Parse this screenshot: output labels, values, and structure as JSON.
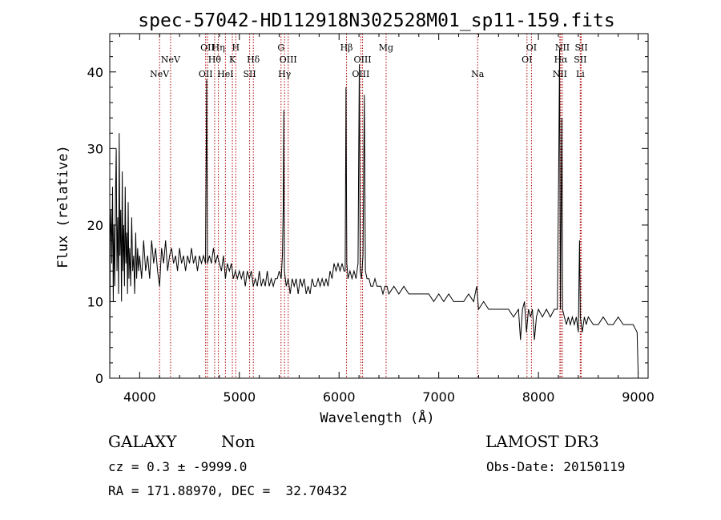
{
  "chart_data": {
    "type": "line",
    "title": "spec-57042-HD112918N302528M01_sp11-159.fits",
    "xlabel": "Wavelength (Å)",
    "ylabel": "Flux (relative)",
    "xlim": [
      3700,
      9100
    ],
    "ylim": [
      0,
      45
    ],
    "x_ticks": [
      4000,
      5000,
      6000,
      7000,
      8000,
      9000
    ],
    "y_ticks": [
      0,
      10,
      20,
      30,
      40
    ],
    "series": [
      {
        "name": "flux",
        "points": [
          [
            3700,
            0.5
          ],
          [
            3705,
            18
          ],
          [
            3712,
            22
          ],
          [
            3720,
            15
          ],
          [
            3728,
            25
          ],
          [
            3735,
            10
          ],
          [
            3742,
            20
          ],
          [
            3750,
            12
          ],
          [
            3758,
            24
          ],
          [
            3765,
            30
          ],
          [
            3772,
            14
          ],
          [
            3780,
            21
          ],
          [
            3788,
            11
          ],
          [
            3795,
            32
          ],
          [
            3802,
            16
          ],
          [
            3810,
            22
          ],
          [
            3818,
            10
          ],
          [
            3825,
            27
          ],
          [
            3832,
            14
          ],
          [
            3840,
            20
          ],
          [
            3848,
            12
          ],
          [
            3855,
            25
          ],
          [
            3862,
            15
          ],
          [
            3870,
            19
          ],
          [
            3878,
            11
          ],
          [
            3885,
            23
          ],
          [
            3892,
            13
          ],
          [
            3900,
            17
          ],
          [
            3910,
            12
          ],
          [
            3920,
            21
          ],
          [
            3930,
            14
          ],
          [
            3940,
            16
          ],
          [
            3950,
            11
          ],
          [
            3960,
            19
          ],
          [
            3970,
            13
          ],
          [
            3980,
            17
          ],
          [
            3990,
            14
          ],
          [
            4000,
            16
          ],
          [
            4020,
            13
          ],
          [
            4040,
            18
          ],
          [
            4060,
            14
          ],
          [
            4080,
            16
          ],
          [
            4100,
            13
          ],
          [
            4120,
            18
          ],
          [
            4140,
            15
          ],
          [
            4160,
            17
          ],
          [
            4180,
            14
          ],
          [
            4200,
            12
          ],
          [
            4220,
            17
          ],
          [
            4240,
            15
          ],
          [
            4260,
            18
          ],
          [
            4280,
            14
          ],
          [
            4300,
            16
          ],
          [
            4320,
            17
          ],
          [
            4340,
            15
          ],
          [
            4360,
            16
          ],
          [
            4380,
            14
          ],
          [
            4400,
            17
          ],
          [
            4420,
            15
          ],
          [
            4440,
            16
          ],
          [
            4460,
            14
          ],
          [
            4480,
            16
          ],
          [
            4500,
            15
          ],
          [
            4520,
            17
          ],
          [
            4540,
            15
          ],
          [
            4560,
            16
          ],
          [
            4580,
            14
          ],
          [
            4600,
            16
          ],
          [
            4620,
            15
          ],
          [
            4640,
            16
          ],
          [
            4660,
            15
          ],
          [
            4672,
            39
          ],
          [
            4680,
            15
          ],
          [
            4700,
            16
          ],
          [
            4720,
            15
          ],
          [
            4740,
            17
          ],
          [
            4760,
            15
          ],
          [
            4780,
            16
          ],
          [
            4800,
            15
          ],
          [
            4820,
            14
          ],
          [
            4840,
            16
          ],
          [
            4860,
            13
          ],
          [
            4880,
            15
          ],
          [
            4900,
            14
          ],
          [
            4920,
            15
          ],
          [
            4940,
            13
          ],
          [
            4960,
            14
          ],
          [
            4980,
            13
          ],
          [
            5000,
            14
          ],
          [
            5020,
            13
          ],
          [
            5040,
            14
          ],
          [
            5060,
            12
          ],
          [
            5080,
            14
          ],
          [
            5100,
            13
          ],
          [
            5120,
            14
          ],
          [
            5140,
            12
          ],
          [
            5160,
            13
          ],
          [
            5180,
            12
          ],
          [
            5200,
            14
          ],
          [
            5220,
            12
          ],
          [
            5240,
            13
          ],
          [
            5260,
            12
          ],
          [
            5280,
            14
          ],
          [
            5300,
            12
          ],
          [
            5320,
            13
          ],
          [
            5340,
            12
          ],
          [
            5360,
            13
          ],
          [
            5380,
            13
          ],
          [
            5400,
            14
          ],
          [
            5420,
            13
          ],
          [
            5432,
            16
          ],
          [
            5440,
            22
          ],
          [
            5446,
            35
          ],
          [
            5452,
            14
          ],
          [
            5470,
            12
          ],
          [
            5490,
            13
          ],
          [
            5510,
            11
          ],
          [
            5530,
            13
          ],
          [
            5550,
            12
          ],
          [
            5570,
            13
          ],
          [
            5590,
            11
          ],
          [
            5610,
            13
          ],
          [
            5630,
            12
          ],
          [
            5650,
            13
          ],
          [
            5670,
            11
          ],
          [
            5690,
            12
          ],
          [
            5710,
            11
          ],
          [
            5730,
            13
          ],
          [
            5750,
            12
          ],
          [
            5770,
            12
          ],
          [
            5790,
            13
          ],
          [
            5810,
            12
          ],
          [
            5830,
            13
          ],
          [
            5850,
            12
          ],
          [
            5870,
            13
          ],
          [
            5890,
            12
          ],
          [
            5910,
            14
          ],
          [
            5930,
            13
          ],
          [
            5950,
            15
          ],
          [
            5970,
            14
          ],
          [
            5990,
            15
          ],
          [
            6010,
            14
          ],
          [
            6030,
            15
          ],
          [
            6050,
            14
          ],
          [
            6062,
            14
          ],
          [
            6070,
            38
          ],
          [
            6078,
            15
          ],
          [
            6090,
            13
          ],
          [
            6110,
            14
          ],
          [
            6130,
            13
          ],
          [
            6150,
            14
          ],
          [
            6170,
            13
          ],
          [
            6190,
            15
          ],
          [
            6203,
            41
          ],
          [
            6212,
            14
          ],
          [
            6225,
            13
          ],
          [
            6240,
            16
          ],
          [
            6254,
            37
          ],
          [
            6264,
            14
          ],
          [
            6280,
            13
          ],
          [
            6300,
            13
          ],
          [
            6320,
            12
          ],
          [
            6340,
            12
          ],
          [
            6360,
            13
          ],
          [
            6380,
            12
          ],
          [
            6400,
            12
          ],
          [
            6420,
            12
          ],
          [
            6440,
            11
          ],
          [
            6460,
            12
          ],
          [
            6480,
            12
          ],
          [
            6500,
            11
          ],
          [
            6550,
            12
          ],
          [
            6600,
            11
          ],
          [
            6650,
            12
          ],
          [
            6700,
            11
          ],
          [
            6750,
            11
          ],
          [
            6800,
            11
          ],
          [
            6850,
            11
          ],
          [
            6900,
            11
          ],
          [
            6950,
            10
          ],
          [
            7000,
            11
          ],
          [
            7050,
            10
          ],
          [
            7100,
            11
          ],
          [
            7150,
            10
          ],
          [
            7200,
            10
          ],
          [
            7250,
            10
          ],
          [
            7300,
            11
          ],
          [
            7350,
            10
          ],
          [
            7380,
            12
          ],
          [
            7400,
            9
          ],
          [
            7450,
            10
          ],
          [
            7500,
            9
          ],
          [
            7550,
            9
          ],
          [
            7600,
            9
          ],
          [
            7650,
            9
          ],
          [
            7700,
            9
          ],
          [
            7750,
            8
          ],
          [
            7800,
            9
          ],
          [
            7820,
            5
          ],
          [
            7840,
            9
          ],
          [
            7860,
            10
          ],
          [
            7880,
            6
          ],
          [
            7900,
            9
          ],
          [
            7920,
            8
          ],
          [
            7940,
            9
          ],
          [
            7960,
            5
          ],
          [
            7980,
            8
          ],
          [
            8000,
            9
          ],
          [
            8040,
            8
          ],
          [
            8080,
            9
          ],
          [
            8120,
            8
          ],
          [
            8160,
            9
          ],
          [
            8190,
            9
          ],
          [
            8205,
            30
          ],
          [
            8212,
            43
          ],
          [
            8220,
            9
          ],
          [
            8235,
            34
          ],
          [
            8242,
            9
          ],
          [
            8260,
            8
          ],
          [
            8280,
            7
          ],
          [
            8300,
            8
          ],
          [
            8320,
            7
          ],
          [
            8340,
            8
          ],
          [
            8360,
            7
          ],
          [
            8380,
            8
          ],
          [
            8400,
            6
          ],
          [
            8412,
            18
          ],
          [
            8420,
            8
          ],
          [
            8440,
            6
          ],
          [
            8460,
            8
          ],
          [
            8480,
            7
          ],
          [
            8500,
            8
          ],
          [
            8550,
            7
          ],
          [
            8600,
            7
          ],
          [
            8650,
            8
          ],
          [
            8700,
            7
          ],
          [
            8750,
            7
          ],
          [
            8800,
            8
          ],
          [
            8850,
            7
          ],
          [
            8900,
            7
          ],
          [
            8950,
            7
          ],
          [
            8990,
            6
          ],
          [
            9000,
            0.5
          ]
        ]
      }
    ],
    "emission_lines": [
      {
        "label": "NeV",
        "x": 4200,
        "row": 3
      },
      {
        "label": "NeV",
        "x": 4310,
        "row": 2
      },
      {
        "label": "OII",
        "x": 4662,
        "row": 3
      },
      {
        "label": "OII",
        "x": 4680,
        "row": 1
      },
      {
        "label": "Hθ",
        "x": 4752,
        "row": 2
      },
      {
        "label": "Hη",
        "x": 4790,
        "row": 1
      },
      {
        "label": "HeI",
        "x": 4860,
        "row": 3
      },
      {
        "label": "K",
        "x": 4930,
        "row": 2
      },
      {
        "label": "H",
        "x": 4964,
        "row": 1
      },
      {
        "label": "SII",
        "x": 5103,
        "row": 3
      },
      {
        "label": "Hδ",
        "x": 5140,
        "row": 2
      },
      {
        "label": "G",
        "x": 5418,
        "row": 1
      },
      {
        "label": "Hγ",
        "x": 5453,
        "row": 3
      },
      {
        "label": "OIII",
        "x": 5490,
        "row": 2
      },
      {
        "label": "Hβ",
        "x": 6075,
        "row": 1
      },
      {
        "label": "OIII",
        "x": 6218,
        "row": 3
      },
      {
        "label": "OIII",
        "x": 6236,
        "row": 2
      },
      {
        "label": "Mg",
        "x": 6472,
        "row": 1
      },
      {
        "label": "Na",
        "x": 7390,
        "row": 3
      },
      {
        "label": "OI",
        "x": 7885,
        "row": 2
      },
      {
        "label": "OI",
        "x": 7930,
        "row": 1
      },
      {
        "label": "NII",
        "x": 8215,
        "row": 3
      },
      {
        "label": "Hα",
        "x": 8225,
        "row": 2
      },
      {
        "label": "NII",
        "x": 8240,
        "row": 1
      },
      {
        "label": "Li",
        "x": 8420,
        "row": 3
      },
      {
        "label": "SII",
        "x": 8420,
        "row": 2
      },
      {
        "label": "SII",
        "x": 8430,
        "row": 1
      }
    ],
    "line_color": "#000000",
    "marker_color": "#b00000"
  },
  "info": {
    "class": "GALAXY",
    "subclass": "Non",
    "survey": "LAMOST DR3",
    "cz": "cz = 0.3 ± -9999.0",
    "obs_date": "Obs-Date: 20150119",
    "coords": "RA = 171.88970, DEC =  32.70432"
  }
}
